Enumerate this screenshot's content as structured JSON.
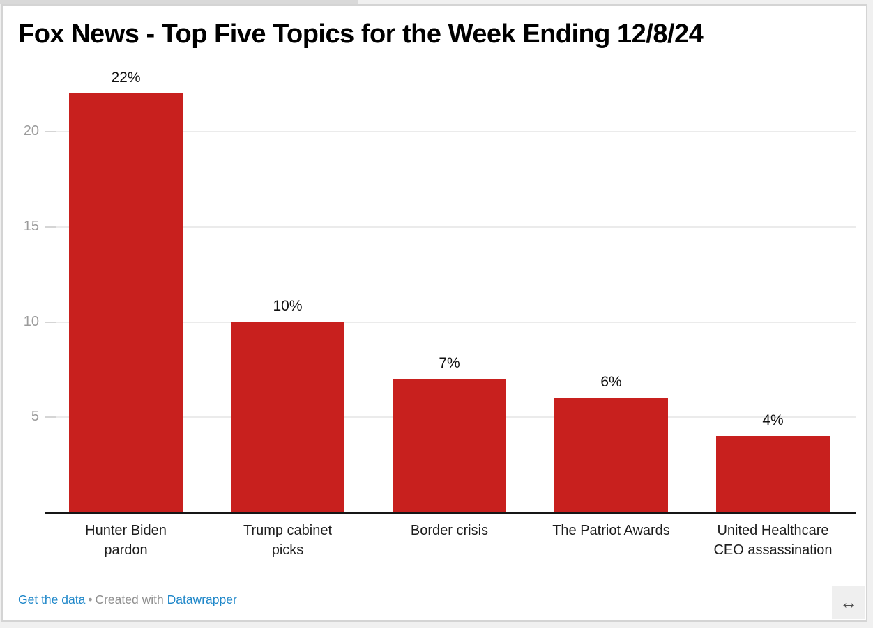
{
  "chart_data": {
    "type": "bar",
    "title": "Fox News - Top Five Topics for the Week Ending 12/8/24",
    "categories": [
      "Hunter Biden\npardon",
      "Trump cabinet\npicks",
      "Border crisis",
      "The Patriot Awards",
      "United Healthcare\nCEO assassination"
    ],
    "values": [
      22,
      10,
      7,
      6,
      4
    ],
    "value_labels": [
      "22%",
      "10%",
      "7%",
      "6%",
      "4%"
    ],
    "y_ticks": [
      5,
      10,
      15,
      20
    ],
    "ylim": [
      0,
      22
    ],
    "unit": "%",
    "grid": "horizontal",
    "legend": "none",
    "xlabel": "",
    "ylabel": "",
    "bar_color": "#c8201e"
  },
  "colors": {
    "bar_red": "#c8201e",
    "link_blue": "#1f87c9",
    "tick_gray": "#9c9c9c",
    "axis_black": "#161616"
  },
  "footer": {
    "get_data_label": "Get the data",
    "separator": "•",
    "created_with": "Created with",
    "datawrapper_label": "Datawrapper"
  },
  "icons": {
    "horizontal_resize": "↔"
  }
}
